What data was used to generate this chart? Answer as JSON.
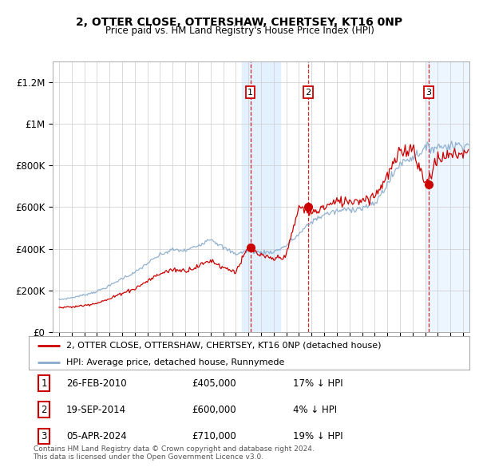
{
  "title": "2, OTTER CLOSE, OTTERSHAW, CHERTSEY, KT16 0NP",
  "subtitle": "Price paid vs. HM Land Registry's House Price Index (HPI)",
  "legend_line1": "2, OTTER CLOSE, OTTERSHAW, CHERTSEY, KT16 0NP (detached house)",
  "legend_line2": "HPI: Average price, detached house, Runnymede",
  "footnote1": "Contains HM Land Registry data © Crown copyright and database right 2024.",
  "footnote2": "This data is licensed under the Open Government Licence v3.0.",
  "transactions": [
    {
      "num": 1,
      "date": "26-FEB-2010",
      "price": "£405,000",
      "hpi": "17% ↓ HPI",
      "year": 2010.15
    },
    {
      "num": 2,
      "date": "19-SEP-2014",
      "price": "£600,000",
      "hpi": "4% ↓ HPI",
      "year": 2014.72
    },
    {
      "num": 3,
      "date": "05-APR-2024",
      "price": "£710,000",
      "hpi": "19% ↓ HPI",
      "year": 2024.26
    }
  ],
  "transaction_values": [
    405000,
    600000,
    710000
  ],
  "shade_region": [
    2009.5,
    2012.5
  ],
  "hatch_region": [
    2024.0,
    2027.5
  ],
  "vline_positions": [
    2010.15,
    2014.72,
    2024.26
  ],
  "ylim": [
    0,
    1300000
  ],
  "yticks": [
    0,
    200000,
    400000,
    600000,
    800000,
    1000000,
    1200000
  ],
  "ytick_labels": [
    "£0",
    "£200K",
    "£400K",
    "£600K",
    "£800K",
    "£1M",
    "£1.2M"
  ],
  "xmin": 1994.5,
  "xmax": 2027.5,
  "xticks": [
    1995,
    1996,
    1997,
    1998,
    1999,
    2000,
    2001,
    2002,
    2003,
    2004,
    2005,
    2006,
    2007,
    2008,
    2009,
    2010,
    2011,
    2012,
    2013,
    2014,
    2015,
    2016,
    2017,
    2018,
    2019,
    2020,
    2021,
    2022,
    2023,
    2024,
    2025,
    2026,
    2027
  ],
  "price_line_color": "#cc0000",
  "hpi_line_color": "#88aacc",
  "vline_color": "#cc0000",
  "shade_color": "#ddeeff",
  "background_color": "#ffffff",
  "grid_color": "#cccccc",
  "hpi_anchors": {
    "1995": 155000,
    "1996": 165000,
    "1997": 178000,
    "1998": 195000,
    "1999": 222000,
    "2000": 258000,
    "2001": 285000,
    "2002": 330000,
    "2003": 370000,
    "2004": 395000,
    "2005": 390000,
    "2006": 415000,
    "2007": 450000,
    "2008": 405000,
    "2009": 375000,
    "2010": 390000,
    "2011": 382000,
    "2012": 385000,
    "2013": 415000,
    "2014": 470000,
    "2015": 530000,
    "2016": 565000,
    "2017": 580000,
    "2018": 590000,
    "2019": 595000,
    "2020": 615000,
    "2021": 710000,
    "2022": 810000,
    "2023": 840000,
    "2024": 880000,
    "2025": 890000,
    "2026": 895000,
    "2027": 900000
  },
  "price_anchors": {
    "1995": 118000,
    "1996": 120000,
    "1997": 128000,
    "1998": 140000,
    "1999": 158000,
    "2000": 188000,
    "2001": 208000,
    "2002": 245000,
    "2003": 280000,
    "2004": 300000,
    "2005": 295000,
    "2006": 315000,
    "2007": 345000,
    "2008": 310000,
    "2009": 290000,
    "2010": 405000,
    "2011": 365000,
    "2012": 350000,
    "2013": 368000,
    "2014": 600000,
    "2015": 570000,
    "2016": 600000,
    "2017": 625000,
    "2018": 630000,
    "2019": 635000,
    "2020": 655000,
    "2021": 750000,
    "2022": 860000,
    "2023": 890000,
    "2024": 710000,
    "2025": 830000,
    "2026": 850000,
    "2027": 860000
  }
}
